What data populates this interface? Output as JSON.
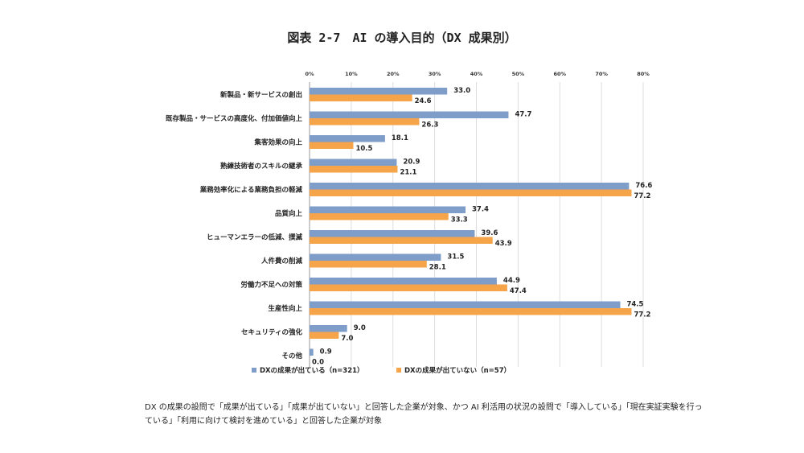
{
  "chart_data": {
    "type": "bar",
    "orientation": "horizontal",
    "title": "図表 2-7　AI の導入目的（DX 成果別）",
    "categories": [
      "新製品・新サービスの創出",
      "既存製品・サービスの高度化、付加価値向上",
      "集客効果の向上",
      "熟練技術者のスキルの継承",
      "業務効率化による業務負担の軽減",
      "品質向上",
      "ヒューマンエラーの低減、撲滅",
      "人件費の削減",
      "労働力不足への対策",
      "生産性向上",
      "セキュリティの強化",
      "その他"
    ],
    "series": [
      {
        "name": "DXの成果が出ている（n=321）",
        "color": "#7f9dc9",
        "values": [
          33.0,
          47.7,
          18.1,
          20.9,
          76.6,
          37.4,
          39.6,
          31.5,
          44.9,
          74.5,
          9.0,
          0.9
        ]
      },
      {
        "name": "DXの成果が出ていない（n=57）",
        "color": "#f5a44a",
        "values": [
          24.6,
          26.3,
          10.5,
          21.1,
          77.2,
          33.3,
          43.9,
          28.1,
          47.4,
          77.2,
          7.0,
          0.0
        ]
      }
    ],
    "xlim": [
      0,
      80
    ],
    "xticks": [
      "0%",
      "10%",
      "20%",
      "30%",
      "40%",
      "50%",
      "60%",
      "70%",
      "80%"
    ],
    "grid": true,
    "legend": "bottom",
    "xlabel": "",
    "ylabel": ""
  },
  "note": "DX の成果の設問で「成果が出ている」「成果が出ていない」と回答した企業が対象、かつ AI 利活用の状況の設問で「導入している」「現在実証実験を行っている」「利用に向けて検討を進めている」と回答した企業が対象"
}
